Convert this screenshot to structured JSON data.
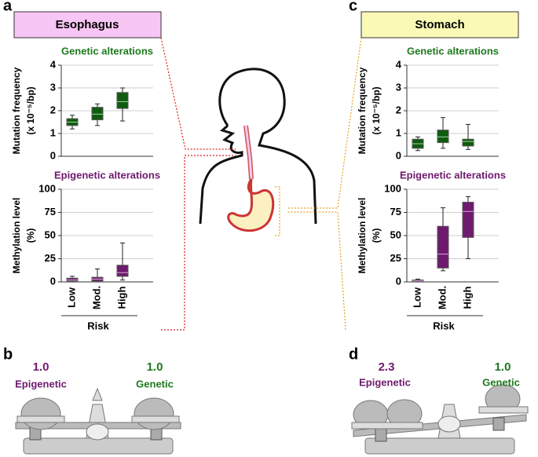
{
  "figure": {
    "panel_labels": [
      "a",
      "b",
      "c",
      "d"
    ],
    "organs": [
      "Esophagus",
      "Stomach"
    ],
    "balances": [
      {
        "epigenetic_value": "1.0",
        "epigenetic_label": "Epigenetic",
        "genetic_value": "1.0",
        "genetic_label": "Genetic"
      },
      {
        "epigenetic_value": "2.3",
        "epigenetic_label": "Epigenetic",
        "genetic_value": "1.0",
        "genetic_label": "Genetic"
      }
    ]
  },
  "chart_data": [
    {
      "type": "box",
      "title": "Genetic alterations",
      "title_color": "#1e7a1e",
      "ylabel": [
        "Mutation frequency",
        "(x 10⁻⁵/bp)"
      ],
      "ylim": [
        0,
        4
      ],
      "yticks": [
        0,
        1,
        2,
        3,
        4
      ],
      "color": "#0f5c0f",
      "median_color": "#9fd49f",
      "grid": true,
      "boxes": [
        {
          "min": 1.2,
          "q1": 1.35,
          "median": 1.5,
          "q3": 1.65,
          "max": 1.8
        },
        {
          "min": 1.35,
          "q1": 1.6,
          "median": 1.85,
          "q3": 2.15,
          "max": 2.3
        },
        {
          "min": 1.55,
          "q1": 2.1,
          "median": 2.4,
          "q3": 2.8,
          "max": 3.0
        }
      ]
    },
    {
      "type": "box",
      "title": "Epigenetic alterations",
      "title_color": "#6e1a6e",
      "ylabel": [
        "Methylation level",
        "(%)"
      ],
      "ylim": [
        0,
        100
      ],
      "yticks": [
        0,
        25,
        50,
        75,
        100
      ],
      "color": "#6e1a6e",
      "median_color": "#d8a8d8",
      "grid": true,
      "categories": [
        "Low",
        "Mod.",
        "High"
      ],
      "xlabel": "Risk",
      "boxes": [
        {
          "min": 0,
          "q1": 1,
          "median": 2,
          "q3": 4,
          "max": 6
        },
        {
          "min": 0,
          "q1": 1,
          "median": 3,
          "q3": 5,
          "max": 14
        },
        {
          "min": 2,
          "q1": 6,
          "median": 10,
          "q3": 18,
          "max": 42
        }
      ]
    },
    {
      "type": "box",
      "title": "Genetic alterations",
      "title_color": "#1e7a1e",
      "ylabel": [
        "Mutation frequency",
        "(x 10⁻⁵/bp)"
      ],
      "ylim": [
        0,
        4
      ],
      "yticks": [
        0,
        1,
        2,
        3,
        4
      ],
      "color": "#0f5c0f",
      "median_color": "#9fd49f",
      "grid": true,
      "boxes": [
        {
          "min": 0.25,
          "q1": 0.35,
          "median": 0.55,
          "q3": 0.75,
          "max": 0.85
        },
        {
          "min": 0.35,
          "q1": 0.6,
          "median": 0.85,
          "q3": 1.15,
          "max": 1.7
        },
        {
          "min": 0.3,
          "q1": 0.45,
          "median": 0.65,
          "q3": 0.75,
          "max": 1.4
        }
      ]
    },
    {
      "type": "box",
      "title": "Epigenetic alterations",
      "title_color": "#6e1a6e",
      "ylabel": [
        "Methylation level",
        "(%)"
      ],
      "ylim": [
        0,
        100
      ],
      "yticks": [
        0,
        25,
        50,
        75,
        100
      ],
      "color": "#6e1a6e",
      "median_color": "#d8a8d8",
      "grid": true,
      "categories": [
        "Low",
        "Mod.",
        "High"
      ],
      "xlabel": "Risk",
      "boxes": [
        {
          "min": 0,
          "q1": 0.5,
          "median": 1,
          "q3": 2,
          "max": 3
        },
        {
          "min": 12,
          "q1": 15,
          "median": 30,
          "q3": 60,
          "max": 80
        },
        {
          "min": 25,
          "q1": 48,
          "median": 76,
          "q3": 86,
          "max": 92
        }
      ]
    }
  ]
}
